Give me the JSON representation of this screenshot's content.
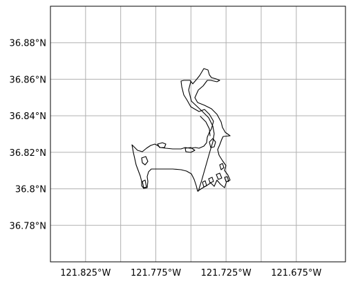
{
  "map": {
    "projection": "PlateCarree",
    "lon_range": [
      -121.85,
      -121.64
    ],
    "lat_range": [
      36.76,
      36.9
    ],
    "gridlines": true,
    "grid_color": "#b0b0b0",
    "frame_color": "#000000",
    "coastline_color": "#000000",
    "lat_ticks": [
      {
        "value": 36.78,
        "label": "36.78°N"
      },
      {
        "value": 36.8,
        "label": "36.8°N"
      },
      {
        "value": 36.82,
        "label": "36.82°N"
      },
      {
        "value": 36.84,
        "label": "36.84°N"
      },
      {
        "value": 36.86,
        "label": "36.86°N"
      },
      {
        "value": 36.88,
        "label": "36.88°N"
      }
    ],
    "lon_ticks": [
      {
        "value": -121.825,
        "label": "121.825°W"
      },
      {
        "value": -121.775,
        "label": "121.775°W"
      },
      {
        "value": -121.725,
        "label": "121.725°W"
      },
      {
        "value": -121.675,
        "label": "121.675°W"
      }
    ],
    "lon_gridlines": [
      -121.825,
      -121.8,
      -121.775,
      -121.75,
      -121.725,
      -121.7,
      -121.675
    ],
    "lat_gridlines": [
      36.78,
      36.8,
      36.82,
      36.84,
      36.86,
      36.88
    ]
  }
}
